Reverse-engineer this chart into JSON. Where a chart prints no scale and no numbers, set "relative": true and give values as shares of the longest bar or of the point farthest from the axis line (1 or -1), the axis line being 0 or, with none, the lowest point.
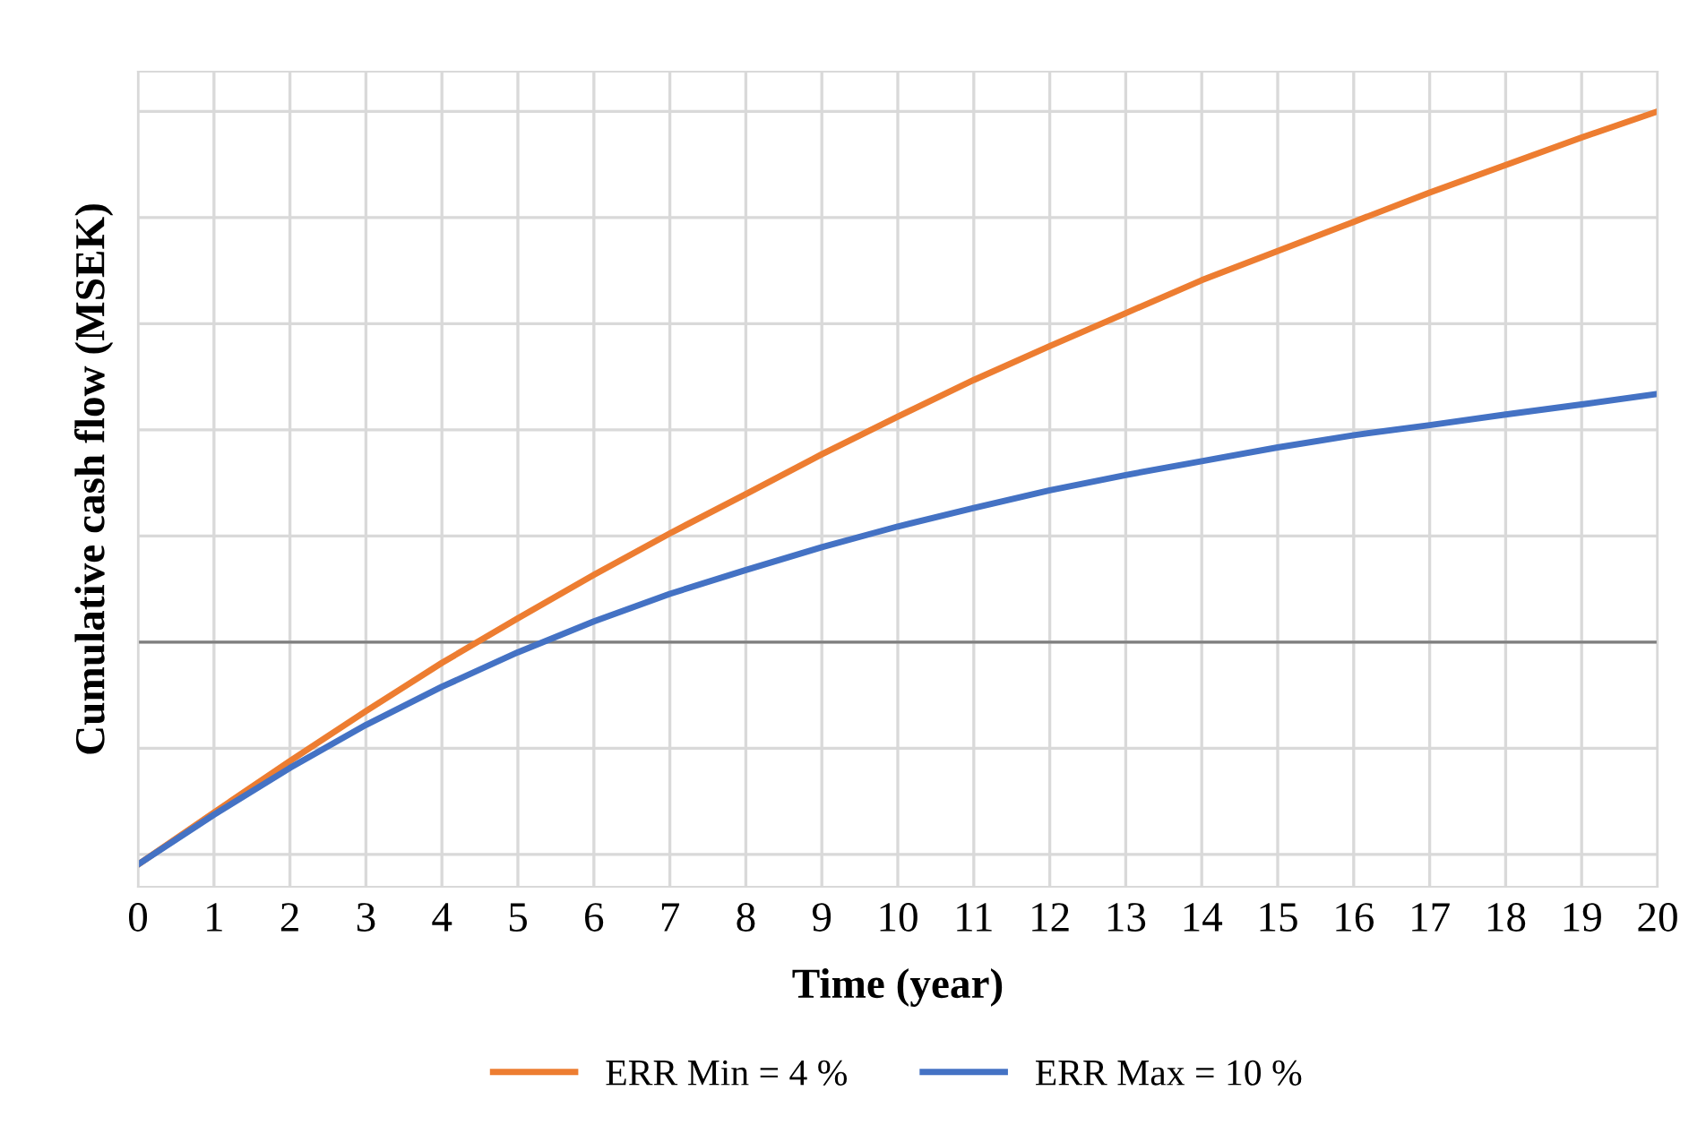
{
  "chart_data": {
    "type": "line",
    "relative": true,
    "xlabel": "Time (year)",
    "ylabel": "Cumulative cash flow (MSEK)",
    "x": [
      0,
      1,
      2,
      3,
      4,
      5,
      6,
      7,
      8,
      9,
      10,
      11,
      12,
      13,
      14,
      15,
      16,
      17,
      18,
      19,
      20
    ],
    "xlim": [
      0,
      20
    ],
    "xticks": [
      0,
      1,
      2,
      3,
      4,
      5,
      6,
      7,
      8,
      9,
      10,
      11,
      12,
      13,
      14,
      15,
      16,
      17,
      18,
      19,
      20
    ],
    "grid": true,
    "ref_lines": [
      {
        "axis": "y",
        "value": 0,
        "color": "#7f7f7f"
      }
    ],
    "legend": "bottom",
    "marker": "none",
    "line_style": "solid",
    "series": [
      {
        "name": "ERR Min = 4 %",
        "color": "#ed7d31",
        "values": [
          -0.419,
          -0.321,
          -0.224,
          -0.13,
          -0.039,
          0.045,
          0.127,
          0.205,
          0.279,
          0.354,
          0.425,
          0.494,
          0.558,
          0.62,
          0.682,
          0.737,
          0.792,
          0.847,
          0.899,
          0.951,
          1
        ]
      },
      {
        "name": "ERR Max = 10 %",
        "color": "#4472c4",
        "values": [
          -0.419,
          -0.325,
          -0.237,
          -0.156,
          -0.084,
          -0.019,
          0.039,
          0.091,
          0.136,
          0.179,
          0.218,
          0.253,
          0.286,
          0.315,
          0.341,
          0.367,
          0.39,
          0.409,
          0.429,
          0.448,
          0.468
        ]
      }
    ]
  }
}
